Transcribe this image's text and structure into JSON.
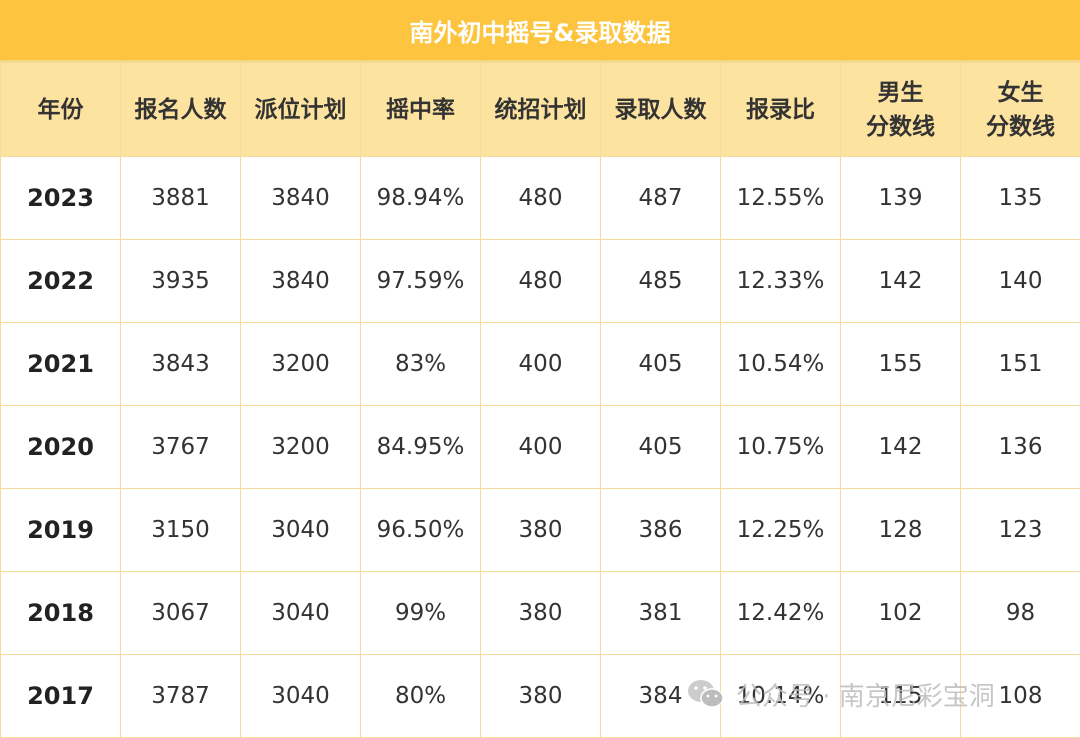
{
  "title": "南外初中摇号&录取数据",
  "headers": [
    [
      "年份"
    ],
    [
      "报名人数"
    ],
    [
      "派位计划"
    ],
    [
      "摇中率"
    ],
    [
      "统招计划"
    ],
    [
      "录取人数"
    ],
    [
      "报录比"
    ],
    [
      "男生",
      "分数线"
    ],
    [
      "女生",
      "分数线"
    ]
  ],
  "rows": [
    [
      "2023",
      "3881",
      "3840",
      "98.94%",
      "480",
      "487",
      "12.55%",
      "139",
      "135"
    ],
    [
      "2022",
      "3935",
      "3840",
      "97.59%",
      "480",
      "485",
      "12.33%",
      "142",
      "140"
    ],
    [
      "2021",
      "3843",
      "3200",
      "83%",
      "400",
      "405",
      "10.54%",
      "155",
      "151"
    ],
    [
      "2020",
      "3767",
      "3200",
      "84.95%",
      "400",
      "405",
      "10.75%",
      "142",
      "136"
    ],
    [
      "2019",
      "3150",
      "3040",
      "96.50%",
      "380",
      "386",
      "12.25%",
      "128",
      "123"
    ],
    [
      "2018",
      "3067",
      "3040",
      "99%",
      "380",
      "381",
      "12.42%",
      "102",
      "98"
    ],
    [
      "2017",
      "3787",
      "3040",
      "80%",
      "380",
      "384",
      "10.14%",
      "115",
      "108"
    ]
  ],
  "watermark": {
    "text": "公众号 · 南京尼彩宝洞",
    "icon": "wechat-icon"
  },
  "colors": {
    "title_bg": "#fdc43f",
    "header_bg": "#fde3a0",
    "border": "#f5dc9c"
  }
}
